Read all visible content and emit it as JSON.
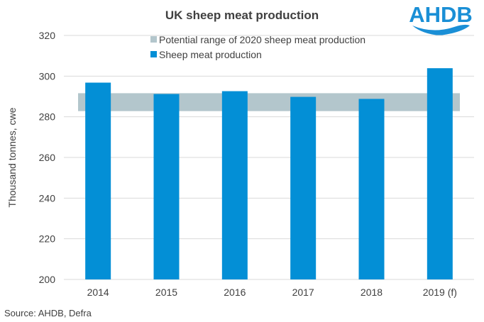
{
  "logo_text": "AHDB",
  "source": "Source: AHDB, Defra",
  "colors": {
    "bar": "#038fd6",
    "band": "#b3c6cc",
    "grid": "#d9d9d9",
    "logo": "#1a8fd6"
  },
  "chart_data": {
    "type": "bar",
    "title": "UK sheep meat production",
    "ylabel": "Thousand tonnes, cwe",
    "xlabel": "",
    "ylim": [
      200,
      320
    ],
    "yticks": [
      200,
      220,
      240,
      260,
      280,
      300,
      320
    ],
    "ytick_labels": [
      "200",
      "220",
      "240",
      "260",
      "280",
      "300",
      "320"
    ],
    "categories": [
      "2014",
      "2015",
      "2016",
      "2017",
      "2018",
      "2019 (f)"
    ],
    "series": [
      {
        "name": "Sheep meat production",
        "values": [
          296.8,
          291.2,
          292.6,
          289.8,
          288.8,
          303.9
        ]
      }
    ],
    "range_band": {
      "name": "Potential range of 2020 sheep meat production",
      "low": 282.8,
      "high": 291.6
    },
    "legend": [
      "Potential range of 2020 sheep meat production",
      "Sheep meat production"
    ],
    "legend_position": "top-center",
    "grid": true
  }
}
